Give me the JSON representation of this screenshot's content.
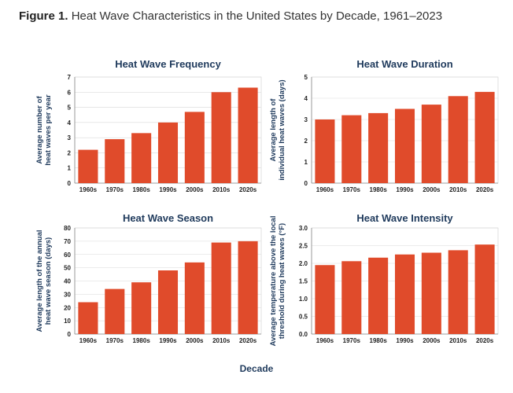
{
  "figure": {
    "label": "Figure 1.",
    "title": "Heat Wave Characteristics in the United States by Decade, 1961–2023",
    "shared_xlabel": "Decade"
  },
  "colors": {
    "bar": "#e04b2b",
    "title": "#1f3a5c"
  },
  "chart_data": [
    {
      "type": "bar",
      "title": "Heat Wave Frequency",
      "ylabel": "Average number of heat waves per year",
      "categories": [
        "1960s",
        "1970s",
        "1980s",
        "1990s",
        "2000s",
        "2010s",
        "2020s"
      ],
      "values": [
        2.2,
        2.9,
        3.3,
        4.0,
        4.7,
        6.0,
        6.3
      ],
      "ylim": [
        0,
        7
      ],
      "yticks": [
        "0",
        "1",
        "2",
        "3",
        "4",
        "5",
        "6",
        "7"
      ],
      "ytick_values": [
        0,
        1,
        2,
        3,
        4,
        5,
        6,
        7
      ]
    },
    {
      "type": "bar",
      "title": "Heat Wave Duration",
      "ylabel": "Average length of individual heat waves (days)",
      "categories": [
        "1960s",
        "1970s",
        "1980s",
        "1990s",
        "2000s",
        "2010s",
        "2020s"
      ],
      "values": [
        3.0,
        3.2,
        3.3,
        3.5,
        3.7,
        4.1,
        4.3
      ],
      "ylim": [
        0,
        5
      ],
      "yticks": [
        "0",
        "1",
        "2",
        "3",
        "4",
        "5"
      ],
      "ytick_values": [
        0,
        1,
        2,
        3,
        4,
        5
      ]
    },
    {
      "type": "bar",
      "title": "Heat Wave Season",
      "ylabel": "Average length of the annual heat wave season (days)",
      "categories": [
        "1960s",
        "1970s",
        "1980s",
        "1990s",
        "2000s",
        "2010s",
        "2020s"
      ],
      "values": [
        24,
        34,
        39,
        48,
        54,
        69,
        70
      ],
      "ylim": [
        0,
        80
      ],
      "yticks": [
        "0",
        "10",
        "20",
        "30",
        "40",
        "50",
        "60",
        "70",
        "80"
      ],
      "ytick_values": [
        0,
        10,
        20,
        30,
        40,
        50,
        60,
        70,
        80
      ]
    },
    {
      "type": "bar",
      "title": "Heat Wave Intensity",
      "ylabel": "Average temperature above the local threshold during heat waves (°F)",
      "categories": [
        "1960s",
        "1970s",
        "1980s",
        "1990s",
        "2000s",
        "2010s",
        "2020s"
      ],
      "values": [
        1.95,
        2.06,
        2.16,
        2.25,
        2.3,
        2.37,
        2.53
      ],
      "ylim": [
        0,
        3
      ],
      "yticks": [
        "0.0",
        "0.5",
        "1.0",
        "1.5",
        "2.0",
        "2.5",
        "3.0"
      ],
      "ytick_values": [
        0,
        0.5,
        1.0,
        1.5,
        2.0,
        2.5,
        3.0
      ]
    }
  ]
}
